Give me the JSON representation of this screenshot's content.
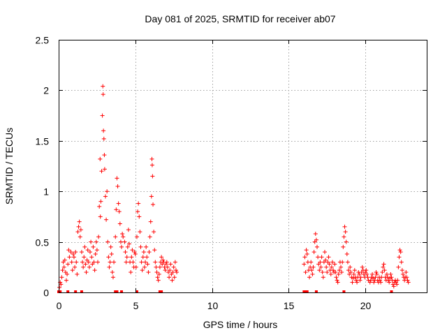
{
  "chart_data": {
    "type": "scatter",
    "title": "Day 081 of 2025, SRMTID for receiver ab07",
    "xlabel": "GPS time / hours",
    "ylabel": "SRMTID / TECUs",
    "xlim": [
      0,
      24
    ],
    "ylim": [
      0,
      2.5
    ],
    "x_ticks": [
      0,
      5,
      10,
      15,
      20
    ],
    "x_tick_labels": [
      "0",
      "5",
      "10",
      "15",
      "20"
    ],
    "y_ticks": [
      0,
      0.5,
      1,
      1.5,
      2,
      2.5
    ],
    "y_tick_labels": [
      "0",
      "0.5",
      "1",
      "1.5",
      "2",
      "2.5"
    ],
    "grid": true,
    "marker": "plus",
    "color": "#ff0000",
    "series": [
      {
        "name": "SRMTID",
        "points": [
          [
            0.05,
            0.05
          ],
          [
            0.1,
            0.1
          ],
          [
            0.15,
            0.08
          ],
          [
            0.2,
            0.15
          ],
          [
            0.25,
            0.22
          ],
          [
            0.3,
            0.3
          ],
          [
            0.35,
            0.25
          ],
          [
            0.4,
            0.32
          ],
          [
            0.45,
            0.2
          ],
          [
            0.5,
            0.12
          ],
          [
            0.55,
            0.18
          ],
          [
            0.6,
            0.28
          ],
          [
            0.65,
            0.42
          ],
          [
            0.7,
            0.35
          ],
          [
            0.8,
            0.4
          ],
          [
            0.85,
            0.3
          ],
          [
            0.9,
            0.22
          ],
          [
            0.95,
            0.38
          ],
          [
            1.0,
            0.35
          ],
          [
            1.05,
            0.25
          ],
          [
            1.1,
            0.4
          ],
          [
            1.15,
            0.3
          ],
          [
            1.2,
            0.18
          ],
          [
            1.25,
            0.6
          ],
          [
            1.3,
            0.65
          ],
          [
            1.35,
            0.7
          ],
          [
            1.4,
            0.55
          ],
          [
            1.45,
            0.62
          ],
          [
            1.5,
            0.4
          ],
          [
            1.55,
            0.3
          ],
          [
            1.6,
            0.25
          ],
          [
            1.65,
            0.35
          ],
          [
            1.7,
            0.45
          ],
          [
            1.75,
            0.28
          ],
          [
            1.8,
            0.2
          ],
          [
            1.85,
            0.32
          ],
          [
            1.9,
            0.42
          ],
          [
            1.95,
            0.3
          ],
          [
            2.0,
            0.25
          ],
          [
            2.05,
            0.4
          ],
          [
            2.1,
            0.5
          ],
          [
            2.15,
            0.35
          ],
          [
            2.2,
            0.28
          ],
          [
            2.25,
            0.45
          ],
          [
            2.3,
            0.3
          ],
          [
            2.35,
            0.22
          ],
          [
            2.4,
            0.38
          ],
          [
            2.45,
            0.5
          ],
          [
            2.5,
            0.42
          ],
          [
            2.55,
            0.3
          ],
          [
            2.6,
            0.55
          ],
          [
            2.65,
            0.85
          ],
          [
            2.7,
            1.32
          ],
          [
            2.72,
            0.75
          ],
          [
            2.75,
            0.9
          ],
          [
            2.8,
            1.2
          ],
          [
            2.85,
            1.75
          ],
          [
            2.88,
            2.04
          ],
          [
            2.9,
            1.96
          ],
          [
            2.92,
            1.6
          ],
          [
            2.95,
            1.52
          ],
          [
            2.98,
            1.36
          ],
          [
            3.0,
            1.22
          ],
          [
            3.05,
            0.95
          ],
          [
            3.1,
            0.72
          ],
          [
            3.15,
            1.0
          ],
          [
            3.2,
            0.5
          ],
          [
            3.25,
            0.35
          ],
          [
            3.3,
            0.25
          ],
          [
            3.35,
            0.3
          ],
          [
            3.4,
            0.45
          ],
          [
            3.45,
            0.38
          ],
          [
            3.5,
            0.2
          ],
          [
            3.55,
            0.15
          ],
          [
            3.6,
            0.3
          ],
          [
            3.7,
            0.55
          ],
          [
            3.75,
            0.82
          ],
          [
            3.8,
            1.13
          ],
          [
            3.85,
            1.05
          ],
          [
            3.9,
            0.88
          ],
          [
            3.95,
            0.8
          ],
          [
            4.0,
            0.68
          ],
          [
            4.05,
            0.5
          ],
          [
            4.1,
            0.45
          ],
          [
            4.15,
            0.58
          ],
          [
            4.2,
            0.55
          ],
          [
            4.3,
            0.5
          ],
          [
            4.35,
            0.4
          ],
          [
            4.4,
            0.3
          ],
          [
            4.45,
            0.35
          ],
          [
            4.5,
            0.45
          ],
          [
            4.55,
            0.62
          ],
          [
            4.6,
            0.48
          ],
          [
            4.65,
            0.3
          ],
          [
            4.7,
            0.2
          ],
          [
            4.75,
            0.35
          ],
          [
            4.8,
            0.42
          ],
          [
            4.85,
            0.3
          ],
          [
            4.9,
            0.25
          ],
          [
            4.95,
            0.4
          ],
          [
            5.0,
            0.38
          ],
          [
            5.05,
            0.25
          ],
          [
            5.1,
            0.55
          ],
          [
            5.15,
            0.8
          ],
          [
            5.2,
            0.88
          ],
          [
            5.25,
            0.75
          ],
          [
            5.3,
            0.6
          ],
          [
            5.35,
            0.45
          ],
          [
            5.4,
            0.3
          ],
          [
            5.45,
            0.22
          ],
          [
            5.5,
            0.35
          ],
          [
            5.55,
            0.4
          ],
          [
            5.6,
            0.25
          ],
          [
            5.65,
            0.3
          ],
          [
            5.7,
            0.45
          ],
          [
            5.75,
            0.35
          ],
          [
            5.8,
            0.28
          ],
          [
            5.85,
            0.2
          ],
          [
            5.9,
            0.4
          ],
          [
            5.95,
            0.55
          ],
          [
            6.0,
            0.7
          ],
          [
            6.05,
            0.95
          ],
          [
            6.08,
            1.32
          ],
          [
            6.1,
            1.26
          ],
          [
            6.12,
            1.15
          ],
          [
            6.15,
            0.87
          ],
          [
            6.2,
            0.6
          ],
          [
            6.25,
            0.42
          ],
          [
            6.3,
            0.3
          ],
          [
            6.35,
            0.25
          ],
          [
            6.4,
            0.2
          ],
          [
            6.45,
            0.15
          ],
          [
            6.5,
            0.12
          ],
          [
            6.55,
            0.18
          ],
          [
            6.6,
            0.25
          ],
          [
            6.65,
            0.3
          ],
          [
            6.7,
            0.35
          ],
          [
            6.75,
            0.28
          ],
          [
            6.8,
            0.32
          ],
          [
            6.85,
            0.3
          ],
          [
            6.9,
            0.25
          ],
          [
            6.95,
            0.22
          ],
          [
            7.0,
            0.28
          ],
          [
            7.05,
            0.3
          ],
          [
            7.1,
            0.25
          ],
          [
            7.15,
            0.2
          ],
          [
            7.2,
            0.15
          ],
          [
            7.25,
            0.22
          ],
          [
            7.3,
            0.28
          ],
          [
            7.35,
            0.18
          ],
          [
            7.4,
            0.12
          ],
          [
            7.45,
            0.2
          ],
          [
            7.5,
            0.25
          ],
          [
            7.55,
            0.15
          ],
          [
            7.6,
            0.3
          ],
          [
            7.65,
            0.22
          ],
          [
            7.7,
            0.2
          ],
          [
            16.0,
            0.28
          ],
          [
            16.05,
            0.35
          ],
          [
            16.1,
            0.2
          ],
          [
            16.15,
            0.42
          ],
          [
            16.2,
            0.38
          ],
          [
            16.25,
            0.3
          ],
          [
            16.3,
            0.22
          ],
          [
            16.35,
            0.15
          ],
          [
            16.4,
            0.25
          ],
          [
            16.45,
            0.3
          ],
          [
            16.5,
            0.22
          ],
          [
            16.55,
            0.18
          ],
          [
            16.6,
            0.25
          ],
          [
            16.65,
            0.4
          ],
          [
            16.7,
            0.5
          ],
          [
            16.75,
            0.58
          ],
          [
            16.8,
            0.52
          ],
          [
            16.85,
            0.45
          ],
          [
            16.9,
            0.35
          ],
          [
            16.95,
            0.28
          ],
          [
            17.0,
            0.22
          ],
          [
            17.05,
            0.3
          ],
          [
            17.1,
            0.25
          ],
          [
            17.15,
            0.35
          ],
          [
            17.2,
            0.2
          ],
          [
            17.25,
            0.15
          ],
          [
            17.3,
            0.3
          ],
          [
            17.35,
            0.4
          ],
          [
            17.4,
            0.32
          ],
          [
            17.45,
            0.25
          ],
          [
            17.5,
            0.2
          ],
          [
            17.55,
            0.3
          ],
          [
            17.6,
            0.35
          ],
          [
            17.65,
            0.28
          ],
          [
            17.7,
            0.22
          ],
          [
            17.75,
            0.18
          ],
          [
            17.8,
            0.25
          ],
          [
            17.85,
            0.3
          ],
          [
            17.9,
            0.22
          ],
          [
            17.95,
            0.2
          ],
          [
            18.0,
            0.28
          ],
          [
            18.05,
            0.2
          ],
          [
            18.1,
            0.15
          ],
          [
            18.15,
            0.12
          ],
          [
            18.2,
            0.1
          ],
          [
            18.25,
            0.18
          ],
          [
            18.3,
            0.22
          ],
          [
            18.35,
            0.3
          ],
          [
            18.4,
            0.25
          ],
          [
            18.45,
            0.2
          ],
          [
            18.5,
            0.3
          ],
          [
            18.55,
            0.45
          ],
          [
            18.6,
            0.55
          ],
          [
            18.65,
            0.65
          ],
          [
            18.7,
            0.6
          ],
          [
            18.75,
            0.5
          ],
          [
            18.8,
            0.38
          ],
          [
            18.85,
            0.3
          ],
          [
            18.9,
            0.22
          ],
          [
            18.95,
            0.18
          ],
          [
            19.0,
            0.25
          ],
          [
            19.05,
            0.2
          ],
          [
            19.1,
            0.15
          ],
          [
            19.15,
            0.1
          ],
          [
            19.2,
            0.14
          ],
          [
            19.25,
            0.18
          ],
          [
            19.3,
            0.22
          ],
          [
            19.35,
            0.15
          ],
          [
            19.4,
            0.12
          ],
          [
            19.45,
            0.1
          ],
          [
            19.5,
            0.15
          ],
          [
            19.55,
            0.2
          ],
          [
            19.6,
            0.18
          ],
          [
            19.65,
            0.12
          ],
          [
            19.7,
            0.15
          ],
          [
            19.75,
            0.2
          ],
          [
            19.8,
            0.25
          ],
          [
            19.85,
            0.22
          ],
          [
            19.9,
            0.18
          ],
          [
            19.95,
            0.15
          ],
          [
            20.0,
            0.2
          ],
          [
            20.05,
            0.22
          ],
          [
            20.1,
            0.18
          ],
          [
            20.15,
            0.15
          ],
          [
            20.2,
            0.12
          ],
          [
            20.3,
            0.1
          ],
          [
            20.35,
            0.12
          ],
          [
            20.4,
            0.15
          ],
          [
            20.45,
            0.18
          ],
          [
            20.5,
            0.14
          ],
          [
            20.55,
            0.1
          ],
          [
            20.6,
            0.12
          ],
          [
            20.65,
            0.15
          ],
          [
            20.7,
            0.2
          ],
          [
            20.75,
            0.18
          ],
          [
            20.8,
            0.12
          ],
          [
            20.85,
            0.1
          ],
          [
            20.9,
            0.15
          ],
          [
            20.95,
            0.12
          ],
          [
            21.0,
            0.1
          ],
          [
            21.05,
            0.15
          ],
          [
            21.1,
            0.2
          ],
          [
            21.15,
            0.25
          ],
          [
            21.2,
            0.28
          ],
          [
            21.25,
            0.22
          ],
          [
            21.3,
            0.15
          ],
          [
            21.35,
            0.12
          ],
          [
            21.4,
            0.18
          ],
          [
            21.45,
            0.15
          ],
          [
            21.5,
            0.12
          ],
          [
            21.55,
            0.1
          ],
          [
            21.6,
            0.14
          ],
          [
            21.65,
            0.18
          ],
          [
            21.7,
            0.15
          ],
          [
            21.75,
            0.12
          ],
          [
            21.8,
            0.08
          ],
          [
            21.85,
            0.06
          ],
          [
            21.9,
            0.1
          ],
          [
            21.95,
            0.12
          ],
          [
            22.0,
            0.1
          ],
          [
            22.05,
            0.08
          ],
          [
            22.1,
            0.12
          ],
          [
            22.15,
            0.25
          ],
          [
            22.2,
            0.35
          ],
          [
            22.25,
            0.42
          ],
          [
            22.3,
            0.4
          ],
          [
            22.35,
            0.3
          ],
          [
            22.4,
            0.22
          ],
          [
            22.45,
            0.18
          ],
          [
            22.5,
            0.15
          ],
          [
            22.55,
            0.12
          ],
          [
            22.6,
            0.15
          ],
          [
            22.65,
            0.2
          ],
          [
            22.7,
            0.15
          ],
          [
            22.75,
            0.12
          ],
          [
            22.8,
            0.1
          ]
        ]
      }
    ],
    "gap_marks_x": [
      0.0,
      0.1,
      0.6,
      1.1,
      1.5,
      3.7,
      3.8,
      4.1,
      5.1,
      6.6,
      6.7,
      16.0,
      16.1,
      16.2,
      16.8,
      18.6,
      21.7
    ]
  }
}
